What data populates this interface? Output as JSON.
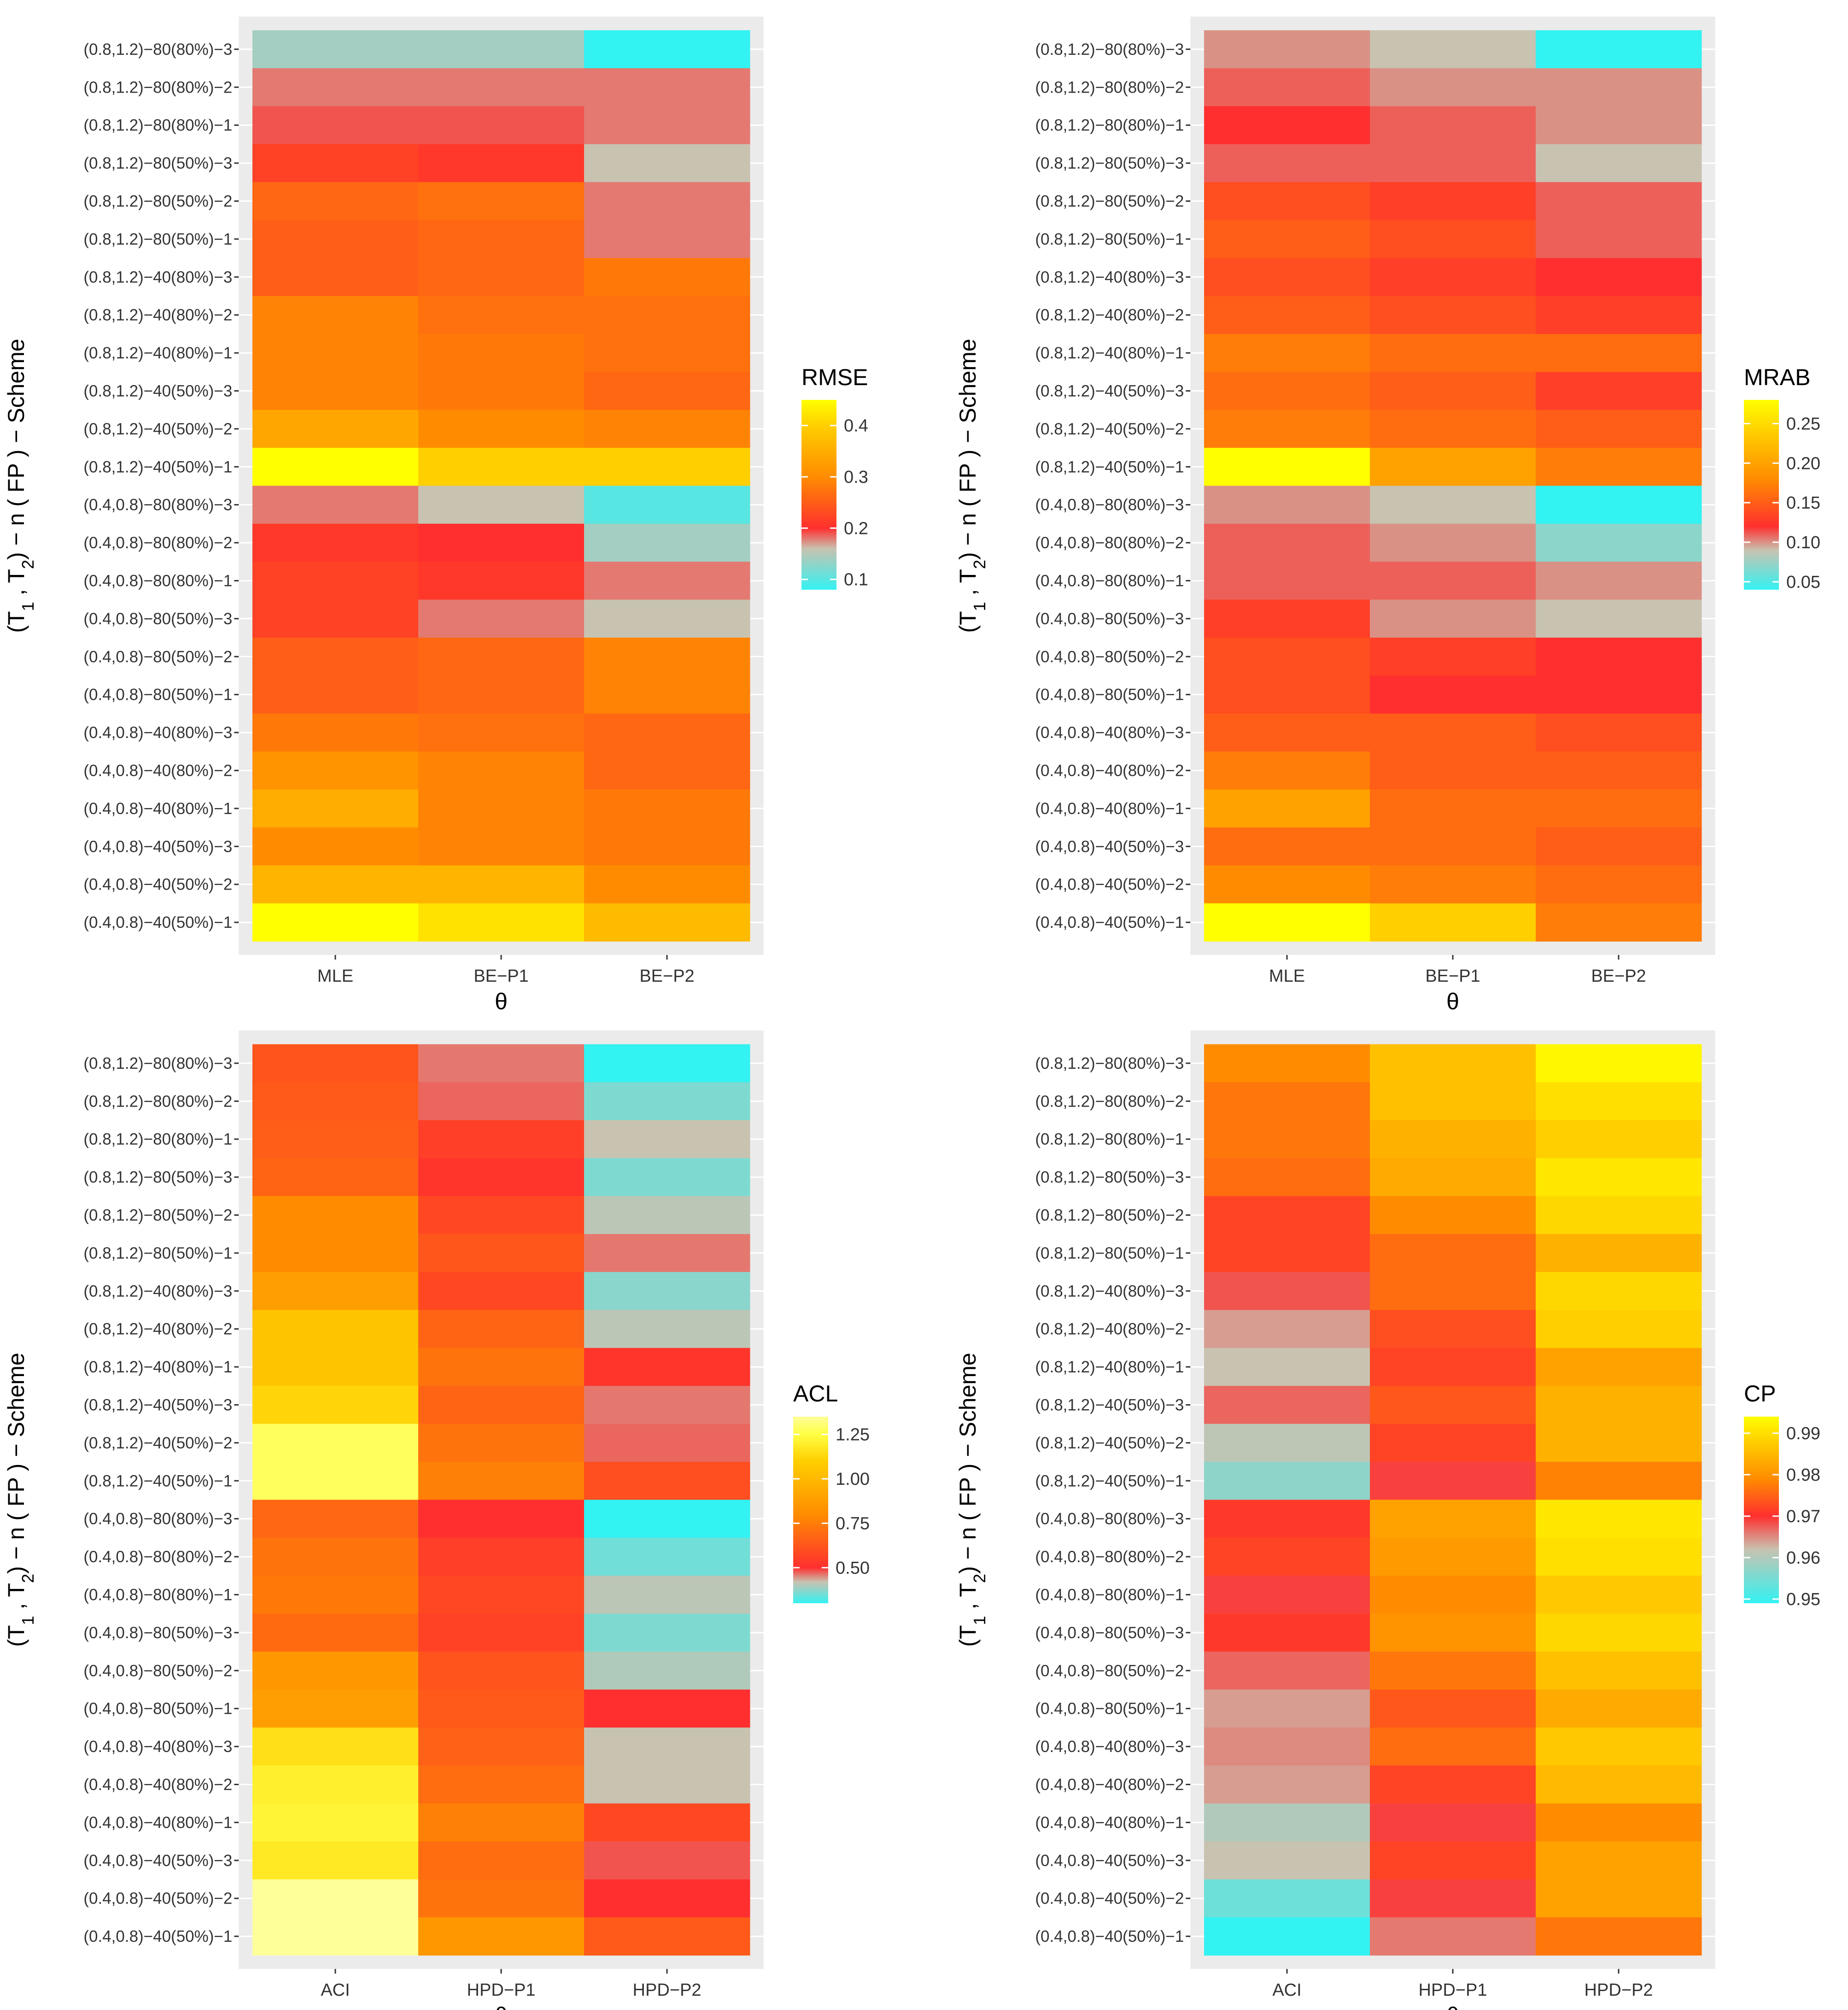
{
  "chart_data": [
    {
      "type": "heatmap",
      "xlabel": "θ",
      "ylabel": {
        "prefix": "(T",
        "sub1": "1",
        "mid": " , T",
        "sub2": "2",
        "suffix": ") − n ( FP ) − Scheme"
      },
      "columns": [
        "MLE",
        "BE−P1",
        "BE−P2"
      ],
      "legend": {
        "title": "RMSE",
        "ticks": [
          0.1,
          0.2,
          0.3,
          0.4
        ],
        "tick_labels": [
          "0.1",
          "0.2",
          "0.3",
          "0.4"
        ],
        "range": [
          0.08,
          0.45
        ],
        "color_stops": [
          [
            0.08,
            "#33f2f2"
          ],
          [
            0.16,
            "#c8c2b0"
          ],
          [
            0.2,
            "#ff2f2f"
          ],
          [
            0.3,
            "#ff8c00"
          ],
          [
            0.4,
            "#ffcf00"
          ],
          [
            0.45,
            "#ffff00"
          ]
        ]
      },
      "rows": [
        "(0.8,1.2)−80(80%)−3",
        "(0.8,1.2)−80(80%)−2",
        "(0.8,1.2)−80(80%)−1",
        "(0.8,1.2)−80(50%)−3",
        "(0.8,1.2)−80(50%)−2",
        "(0.8,1.2)−80(50%)−1",
        "(0.8,1.2)−40(80%)−3",
        "(0.8,1.2)−40(80%)−2",
        "(0.8,1.2)−40(80%)−1",
        "(0.8,1.2)−40(50%)−3",
        "(0.8,1.2)−40(50%)−2",
        "(0.8,1.2)−40(50%)−1",
        "(0.4,0.8)−80(80%)−3",
        "(0.4,0.8)−80(80%)−2",
        "(0.4,0.8)−80(80%)−1",
        "(0.4,0.8)−80(50%)−3",
        "(0.4,0.8)−80(50%)−2",
        "(0.4,0.8)−80(50%)−1",
        "(0.4,0.8)−40(80%)−3",
        "(0.4,0.8)−40(80%)−2",
        "(0.4,0.8)−40(80%)−1",
        "(0.4,0.8)−40(50%)−3",
        "(0.4,0.8)−40(50%)−2",
        "(0.4,0.8)−40(50%)−1"
      ],
      "values": [
        [
          0.14,
          0.14,
          0.08
        ],
        [
          0.18,
          0.18,
          0.18
        ],
        [
          0.19,
          0.19,
          0.18
        ],
        [
          0.22,
          0.21,
          0.16
        ],
        [
          0.26,
          0.27,
          0.18
        ],
        [
          0.25,
          0.26,
          0.18
        ],
        [
          0.25,
          0.26,
          0.28
        ],
        [
          0.29,
          0.27,
          0.27
        ],
        [
          0.29,
          0.28,
          0.27
        ],
        [
          0.29,
          0.28,
          0.26
        ],
        [
          0.34,
          0.3,
          0.29
        ],
        [
          0.45,
          0.4,
          0.4
        ],
        [
          0.18,
          0.16,
          0.1
        ],
        [
          0.21,
          0.2,
          0.14
        ],
        [
          0.22,
          0.21,
          0.18
        ],
        [
          0.22,
          0.18,
          0.16
        ],
        [
          0.25,
          0.26,
          0.29
        ],
        [
          0.25,
          0.26,
          0.29
        ],
        [
          0.28,
          0.27,
          0.26
        ],
        [
          0.31,
          0.29,
          0.26
        ],
        [
          0.35,
          0.29,
          0.28
        ],
        [
          0.3,
          0.29,
          0.28
        ],
        [
          0.36,
          0.36,
          0.3
        ],
        [
          0.45,
          0.42,
          0.37
        ]
      ]
    },
    {
      "type": "heatmap",
      "xlabel": "θ",
      "ylabel": {
        "prefix": "(T",
        "sub1": "1",
        "mid": " , T",
        "sub2": "2",
        "suffix": ") − n ( FP ) − Scheme"
      },
      "columns": [
        "MLE",
        "BE−P1",
        "BE−P2"
      ],
      "legend": {
        "title": "MRAB",
        "ticks": [
          0.05,
          0.1,
          0.15,
          0.2,
          0.25
        ],
        "tick_labels": [
          "0.05",
          "0.10",
          "0.15",
          "0.20",
          "0.25"
        ],
        "range": [
          0.04,
          0.28
        ],
        "color_stops": [
          [
            0.04,
            "#33f2f2"
          ],
          [
            0.09,
            "#c8c2b0"
          ],
          [
            0.12,
            "#ff2f2f"
          ],
          [
            0.18,
            "#ff8c00"
          ],
          [
            0.24,
            "#ffcf00"
          ],
          [
            0.28,
            "#ffff00"
          ]
        ]
      },
      "rows": [
        "(0.8,1.2)−80(80%)−3",
        "(0.8,1.2)−80(80%)−2",
        "(0.8,1.2)−80(80%)−1",
        "(0.8,1.2)−80(50%)−3",
        "(0.8,1.2)−80(50%)−2",
        "(0.8,1.2)−80(50%)−1",
        "(0.8,1.2)−40(80%)−3",
        "(0.8,1.2)−40(80%)−2",
        "(0.8,1.2)−40(80%)−1",
        "(0.8,1.2)−40(50%)−3",
        "(0.8,1.2)−40(50%)−2",
        "(0.8,1.2)−40(50%)−1",
        "(0.4,0.8)−80(80%)−3",
        "(0.4,0.8)−80(80%)−2",
        "(0.4,0.8)−80(80%)−1",
        "(0.4,0.8)−80(50%)−3",
        "(0.4,0.8)−80(50%)−2",
        "(0.4,0.8)−80(50%)−1",
        "(0.4,0.8)−40(80%)−3",
        "(0.4,0.8)−40(80%)−2",
        "(0.4,0.8)−40(80%)−1",
        "(0.4,0.8)−40(50%)−3",
        "(0.4,0.8)−40(50%)−2",
        "(0.4,0.8)−40(50%)−1"
      ],
      "values": [
        [
          0.1,
          0.09,
          0.04
        ],
        [
          0.11,
          0.1,
          0.1
        ],
        [
          0.12,
          0.11,
          0.1
        ],
        [
          0.11,
          0.11,
          0.09
        ],
        [
          0.14,
          0.13,
          0.11
        ],
        [
          0.15,
          0.14,
          0.11
        ],
        [
          0.14,
          0.13,
          0.12
        ],
        [
          0.15,
          0.14,
          0.13
        ],
        [
          0.17,
          0.16,
          0.16
        ],
        [
          0.16,
          0.15,
          0.13
        ],
        [
          0.17,
          0.16,
          0.15
        ],
        [
          0.28,
          0.2,
          0.17
        ],
        [
          0.1,
          0.09,
          0.04
        ],
        [
          0.11,
          0.1,
          0.07
        ],
        [
          0.11,
          0.11,
          0.1
        ],
        [
          0.13,
          0.1,
          0.09
        ],
        [
          0.14,
          0.13,
          0.12
        ],
        [
          0.14,
          0.12,
          0.12
        ],
        [
          0.15,
          0.15,
          0.14
        ],
        [
          0.17,
          0.15,
          0.15
        ],
        [
          0.2,
          0.16,
          0.16
        ],
        [
          0.16,
          0.16,
          0.15
        ],
        [
          0.18,
          0.17,
          0.16
        ],
        [
          0.28,
          0.24,
          0.17
        ]
      ]
    },
    {
      "type": "heatmap",
      "xlabel": "θ",
      "ylabel": {
        "prefix": "(T",
        "sub1": "1",
        "mid": " , T",
        "sub2": "2",
        "suffix": ") − n ( FP ) − Scheme"
      },
      "columns": [
        "ACI",
        "HPD−P1",
        "HPD−P2"
      ],
      "legend": {
        "title": "ACL",
        "ticks": [
          0.5,
          0.75,
          1.0,
          1.25
        ],
        "tick_labels": [
          "0.50",
          "0.75",
          "1.00",
          "1.25"
        ],
        "range": [
          0.3,
          1.35
        ],
        "color_stops": [
          [
            0.3,
            "#33f2f2"
          ],
          [
            0.42,
            "#c8c2b0"
          ],
          [
            0.5,
            "#ff2f2f"
          ],
          [
            0.8,
            "#ff8c00"
          ],
          [
            1.1,
            "#ffcf00"
          ],
          [
            1.25,
            "#ffff44"
          ],
          [
            1.35,
            "#ffff99"
          ]
        ]
      },
      "rows": [
        "(0.8,1.2)−80(80%)−3",
        "(0.8,1.2)−80(80%)−2",
        "(0.8,1.2)−80(80%)−1",
        "(0.8,1.2)−80(50%)−3",
        "(0.8,1.2)−80(50%)−2",
        "(0.8,1.2)−80(50%)−1",
        "(0.8,1.2)−40(80%)−3",
        "(0.8,1.2)−40(80%)−2",
        "(0.8,1.2)−40(80%)−1",
        "(0.8,1.2)−40(50%)−3",
        "(0.8,1.2)−40(50%)−2",
        "(0.8,1.2)−40(50%)−1",
        "(0.4,0.8)−80(80%)−3",
        "(0.4,0.8)−80(80%)−2",
        "(0.4,0.8)−80(80%)−1",
        "(0.4,0.8)−80(50%)−3",
        "(0.4,0.8)−80(50%)−2",
        "(0.4,0.8)−80(50%)−1",
        "(0.4,0.8)−40(80%)−3",
        "(0.4,0.8)−40(80%)−2",
        "(0.4,0.8)−40(80%)−1",
        "(0.4,0.8)−40(50%)−3",
        "(0.4,0.8)−40(50%)−2",
        "(0.4,0.8)−40(50%)−1"
      ],
      "values": [
        [
          0.62,
          0.46,
          0.3
        ],
        [
          0.64,
          0.47,
          0.36
        ],
        [
          0.65,
          0.55,
          0.42
        ],
        [
          0.67,
          0.52,
          0.36
        ],
        [
          0.8,
          0.58,
          0.41
        ],
        [
          0.8,
          0.63,
          0.46
        ],
        [
          0.88,
          0.58,
          0.37
        ],
        [
          1.05,
          0.67,
          0.41
        ],
        [
          1.05,
          0.72,
          0.52
        ],
        [
          1.12,
          0.67,
          0.46
        ],
        [
          1.28,
          0.72,
          0.47
        ],
        [
          1.28,
          0.76,
          0.6
        ],
        [
          0.68,
          0.5,
          0.3
        ],
        [
          0.72,
          0.55,
          0.35
        ],
        [
          0.74,
          0.58,
          0.41
        ],
        [
          0.69,
          0.56,
          0.36
        ],
        [
          0.85,
          0.62,
          0.4
        ],
        [
          0.88,
          0.64,
          0.5
        ],
        [
          1.15,
          0.66,
          0.42
        ],
        [
          1.2,
          0.7,
          0.42
        ],
        [
          1.22,
          0.76,
          0.58
        ],
        [
          1.18,
          0.7,
          0.48
        ],
        [
          1.35,
          0.72,
          0.5
        ],
        [
          1.35,
          0.85,
          0.64
        ]
      ]
    },
    {
      "type": "heatmap",
      "xlabel": "θ",
      "ylabel": {
        "prefix": "(T",
        "sub1": "1",
        "mid": " , T",
        "sub2": "2",
        "suffix": ") − n ( FP ) − Scheme"
      },
      "columns": [
        "ACI",
        "HPD−P1",
        "HPD−P2"
      ],
      "legend": {
        "title": "CP",
        "ticks": [
          0.95,
          0.96,
          0.97,
          0.98,
          0.99
        ],
        "tick_labels": [
          "0.95",
          "0.96",
          "0.97",
          "0.98",
          "0.99"
        ],
        "range": [
          0.949,
          0.994
        ],
        "color_stops": [
          [
            0.949,
            "#33f2f2"
          ],
          [
            0.962,
            "#c8c2b0"
          ],
          [
            0.97,
            "#ff2f2f"
          ],
          [
            0.979,
            "#ff8c00"
          ],
          [
            0.988,
            "#ffcf00"
          ],
          [
            0.994,
            "#ffff00"
          ]
        ]
      },
      "rows": [
        "(0.8,1.2)−80(80%)−3",
        "(0.8,1.2)−80(80%)−2",
        "(0.8,1.2)−80(80%)−1",
        "(0.8,1.2)−80(50%)−3",
        "(0.8,1.2)−80(50%)−2",
        "(0.8,1.2)−80(50%)−1",
        "(0.8,1.2)−40(80%)−3",
        "(0.8,1.2)−40(80%)−2",
        "(0.8,1.2)−40(80%)−1",
        "(0.8,1.2)−40(50%)−3",
        "(0.8,1.2)−40(50%)−2",
        "(0.8,1.2)−40(50%)−1",
        "(0.4,0.8)−80(80%)−3",
        "(0.4,0.8)−80(80%)−2",
        "(0.4,0.8)−80(80%)−1",
        "(0.4,0.8)−80(50%)−3",
        "(0.4,0.8)−80(50%)−2",
        "(0.4,0.8)−80(50%)−1",
        "(0.4,0.8)−40(80%)−3",
        "(0.4,0.8)−40(80%)−2",
        "(0.4,0.8)−40(80%)−1",
        "(0.4,0.8)−40(50%)−3",
        "(0.4,0.8)−40(50%)−2",
        "(0.4,0.8)−40(50%)−1"
      ],
      "values": [
        [
          0.979,
          0.986,
          0.993
        ],
        [
          0.977,
          0.986,
          0.99
        ],
        [
          0.977,
          0.984,
          0.988
        ],
        [
          0.976,
          0.983,
          0.991
        ],
        [
          0.972,
          0.979,
          0.989
        ],
        [
          0.972,
          0.976,
          0.984
        ],
        [
          0.968,
          0.976,
          0.989
        ],
        [
          0.964,
          0.973,
          0.988
        ],
        [
          0.962,
          0.972,
          0.982
        ],
        [
          0.967,
          0.974,
          0.984
        ],
        [
          0.961,
          0.972,
          0.984
        ],
        [
          0.957,
          0.969,
          0.978
        ],
        [
          0.971,
          0.982,
          0.991
        ],
        [
          0.972,
          0.981,
          0.99
        ],
        [
          0.969,
          0.979,
          0.987
        ],
        [
          0.971,
          0.98,
          0.989
        ],
        [
          0.967,
          0.977,
          0.986
        ],
        [
          0.964,
          0.974,
          0.983
        ],
        [
          0.965,
          0.976,
          0.987
        ],
        [
          0.964,
          0.972,
          0.985
        ],
        [
          0.96,
          0.969,
          0.979
        ],
        [
          0.962,
          0.972,
          0.982
        ],
        [
          0.954,
          0.969,
          0.982
        ],
        [
          0.949,
          0.966,
          0.977
        ]
      ]
    }
  ]
}
